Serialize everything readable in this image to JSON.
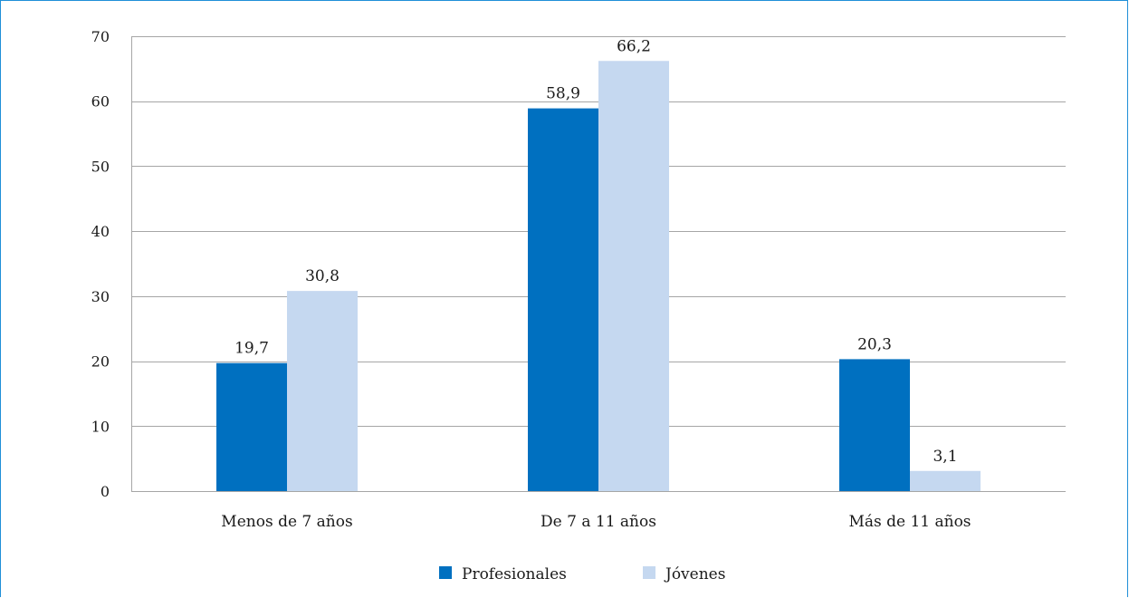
{
  "colors": {
    "profesionales": "#0070c0",
    "jovenes": "#c5d8f0",
    "grid": "#a6a6a6",
    "frame": "#1f8fd8"
  },
  "chart_data": {
    "type": "bar",
    "categories": [
      "Menos de 7 años",
      "De 7 a 11 años",
      "Más de 11 años"
    ],
    "series": [
      {
        "name": "Profesionales",
        "values": [
          19.7,
          58.9,
          20.3
        ],
        "labels": [
          "19,7",
          "58,9",
          "20,3"
        ]
      },
      {
        "name": "Jóvenes",
        "values": [
          30.8,
          66.2,
          3.1
        ],
        "labels": [
          "30,8",
          "66,2",
          "3,1"
        ]
      }
    ],
    "ylim": [
      0,
      70
    ],
    "yticks": [
      0,
      10,
      20,
      30,
      40,
      50,
      60,
      70
    ],
    "grid": true,
    "legend_position": "bottom"
  }
}
